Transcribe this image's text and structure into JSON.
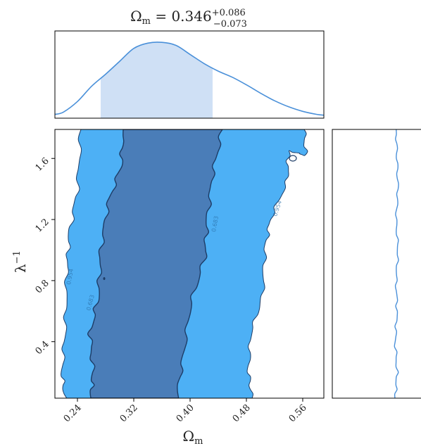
{
  "chart_data": [
    {
      "type": "area",
      "panel": "marginal Omega_m",
      "title_base": "Ω",
      "title_sub": "m",
      "title_value": " = 0.346",
      "title_upper": "+0.086",
      "title_lower": "−0.073",
      "x": [
        0.208,
        0.22,
        0.24,
        0.26,
        0.28,
        0.3,
        0.32,
        0.34,
        0.36,
        0.38,
        0.4,
        0.42,
        0.44,
        0.46,
        0.48,
        0.5,
        0.52,
        0.54,
        0.56,
        0.58,
        0.59
      ],
      "y": [
        0.05,
        0.08,
        0.22,
        0.42,
        0.58,
        0.75,
        0.92,
        0.99,
        1.0,
        0.96,
        0.84,
        0.72,
        0.62,
        0.54,
        0.44,
        0.33,
        0.23,
        0.15,
        0.09,
        0.05,
        0.04
      ],
      "credible_interval": [
        0.273,
        0.432
      ],
      "xlim": [
        0.208,
        0.59
      ],
      "ylim": [
        0,
        1.15
      ],
      "line_color": "#4a90d9",
      "fill_color": "#cfe0f5"
    },
    {
      "type": "heatmap",
      "panel": "joint Omega_m vs inverse lambda",
      "x_tick_labels": [
        "0.24",
        "0.32",
        "0.40",
        "0.48",
        "0.56"
      ],
      "y_tick_labels": [
        "0.4",
        "0.8",
        "1.2",
        "1.6"
      ],
      "x_ticks": [
        0.24,
        0.32,
        0.4,
        0.48,
        0.56
      ],
      "y_ticks": [
        0.4,
        0.8,
        1.2,
        1.6
      ],
      "xlim": [
        0.208,
        0.59
      ],
      "ylim": [
        0.03,
        1.79
      ],
      "xlabel_base": "Ω",
      "xlabel_sub": "m",
      "ylabel_base": "λ",
      "ylabel_sup": "−1",
      "levels": [
        "68%",
        "95%"
      ],
      "contour_labels": [
        "0.683",
        "0.683",
        "0.954",
        "0.954"
      ],
      "inner_color": "#4a7db8",
      "outer_color": "#4db0f5",
      "edge_color": "#1d3c66",
      "inner_left": [
        [
          0.259,
          0.03
        ],
        [
          0.262,
          0.2
        ],
        [
          0.258,
          0.45
        ],
        [
          0.27,
          0.7
        ],
        [
          0.273,
          1.0
        ],
        [
          0.283,
          1.3
        ],
        [
          0.302,
          1.55
        ],
        [
          0.305,
          1.79
        ]
      ],
      "inner_right": [
        [
          0.381,
          0.03
        ],
        [
          0.39,
          0.3
        ],
        [
          0.401,
          0.65
        ],
        [
          0.421,
          0.95
        ],
        [
          0.424,
          1.2
        ],
        [
          0.432,
          1.5
        ],
        [
          0.446,
          1.79
        ]
      ],
      "outer_left": [
        [
          0.222,
          0.03
        ],
        [
          0.218,
          0.2
        ],
        [
          0.223,
          0.5
        ],
        [
          0.225,
          0.85
        ],
        [
          0.228,
          1.1
        ],
        [
          0.24,
          1.4
        ],
        [
          0.245,
          1.79
        ]
      ],
      "outer_right": [
        [
          0.488,
          0.03
        ],
        [
          0.483,
          0.2
        ],
        [
          0.486,
          0.45
        ],
        [
          0.503,
          0.7
        ],
        [
          0.506,
          1.0
        ],
        [
          0.514,
          1.2
        ],
        [
          0.538,
          1.45
        ],
        [
          0.54,
          1.65
        ],
        [
          0.564,
          1.62
        ],
        [
          0.562,
          1.79
        ]
      ]
    },
    {
      "type": "line",
      "panel": "marginal inverse lambda",
      "y": [
        0.03,
        0.2,
        0.4,
        0.6,
        0.8,
        1.0,
        1.2,
        1.4,
        1.6,
        1.79
      ],
      "x": [
        0.71,
        0.73,
        0.71,
        0.73,
        0.72,
        0.74,
        0.72,
        0.74,
        0.73,
        0.72
      ],
      "ylim": [
        0.03,
        1.79
      ],
      "xlim": [
        0,
        1
      ],
      "line_color": "#4a90d9"
    }
  ]
}
